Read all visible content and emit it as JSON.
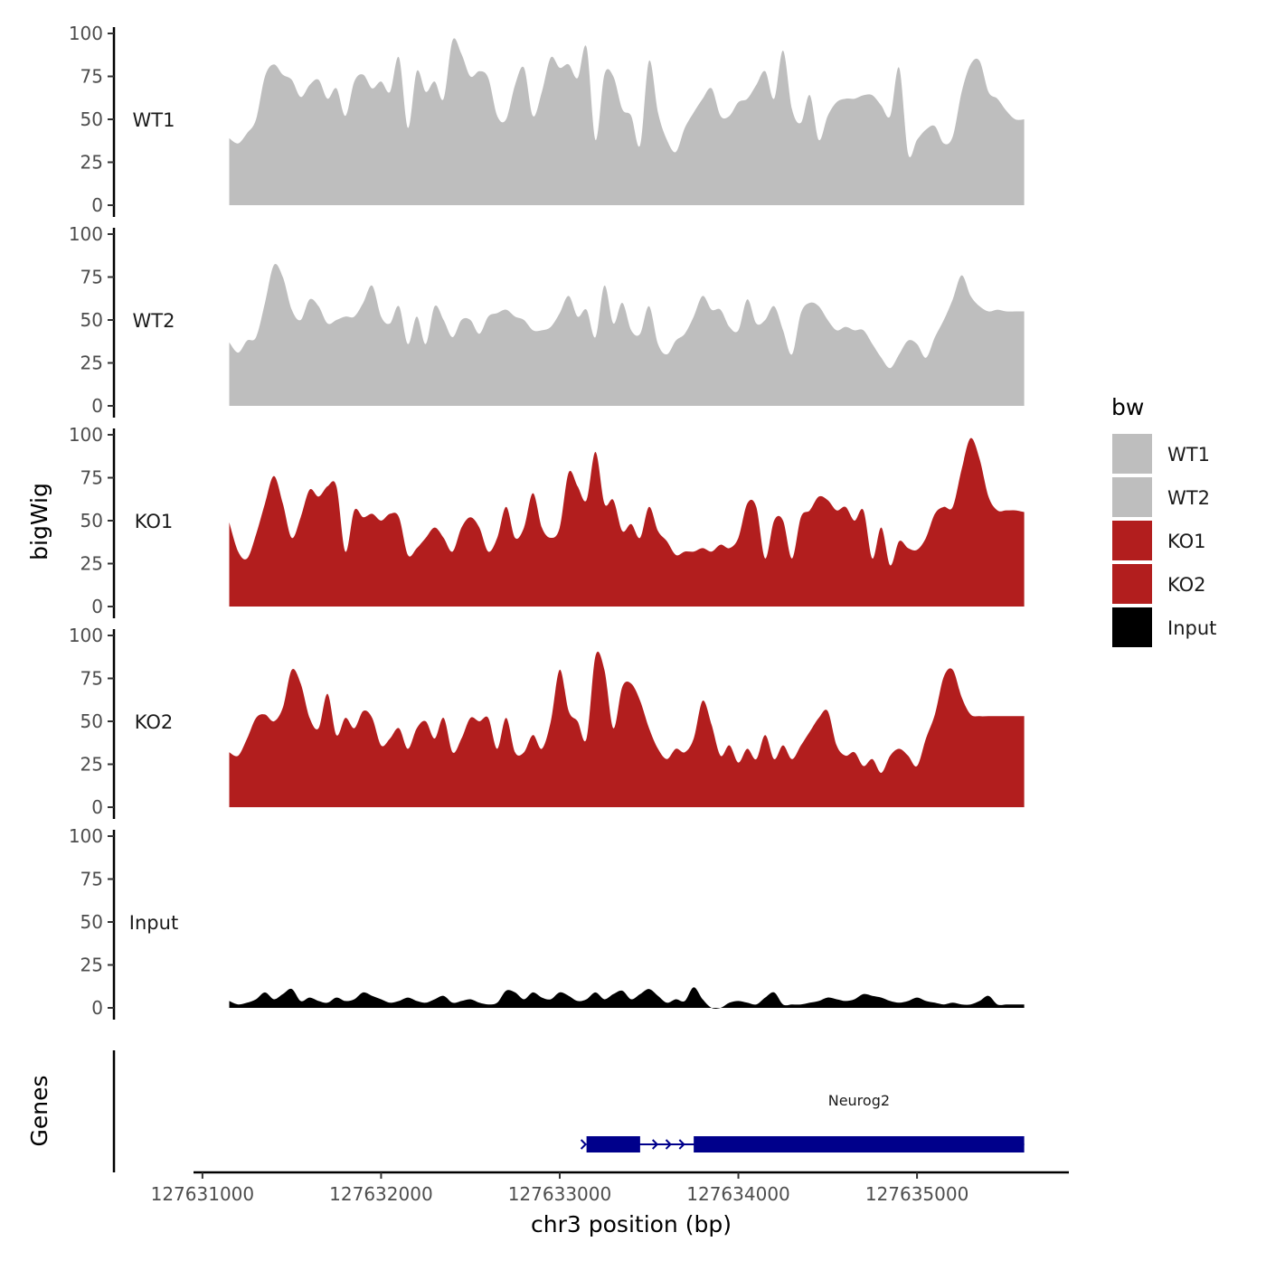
{
  "chart_data": {
    "type": "area",
    "title": "",
    "xlabel": "chr3 position (bp)",
    "ylabel": "bigWig",
    "genes_panel_label": "Genes",
    "xlim": [
      127630950,
      127635850
    ],
    "ylim": [
      0,
      100
    ],
    "x_ticks": [
      127631000,
      127632000,
      127633000,
      127634000,
      127635000
    ],
    "x_tick_labels": [
      "127631000",
      "127632000",
      "127633000",
      "127634000",
      "127635000"
    ],
    "y_ticks": [
      0,
      25,
      50,
      75,
      100
    ],
    "y_tick_labels": [
      "0",
      "25",
      "50",
      "75",
      "100"
    ],
    "legend": {
      "title": "bw",
      "position": "right",
      "entries": [
        {
          "label": "WT1",
          "color": "#bebebe"
        },
        {
          "label": "WT2",
          "color": "#bebebe"
        },
        {
          "label": "KO1",
          "color": "#b21e1e"
        },
        {
          "label": "KO2",
          "color": "#b21e1e"
        },
        {
          "label": "Input",
          "color": "#000000"
        }
      ]
    },
    "series": [
      {
        "name": "WT1",
        "color": "#bebebe",
        "x": [
          127631150,
          127631200,
          127631250,
          127631300,
          127631350,
          127631400,
          127631450,
          127631500,
          127631550,
          127631600,
          127631650,
          127631700,
          127631750,
          127631800,
          127631850,
          127631900,
          127631950,
          127632000,
          127632050,
          127632100,
          127632150,
          127632200,
          127632250,
          127632300,
          127632350,
          127632400,
          127632450,
          127632500,
          127632550,
          127632600,
          127632650,
          127632700,
          127632750,
          127632800,
          127632850,
          127632900,
          127632950,
          127633000,
          127633050,
          127633100,
          127633150,
          127633200,
          127633250,
          127633300,
          127633350,
          127633400,
          127633450,
          127633500,
          127633550,
          127633600,
          127633650,
          127633700,
          127633750,
          127633800,
          127633850,
          127633900,
          127633950,
          127634000,
          127634050,
          127634100,
          127634150,
          127634200,
          127634250,
          127634300,
          127634350,
          127634400,
          127634450,
          127634500,
          127634550,
          127634600,
          127634650,
          127634700,
          127634750,
          127634800,
          127634850,
          127634900,
          127634950,
          127635000,
          127635050,
          127635100,
          127635150,
          127635200,
          127635250,
          127635300,
          127635350,
          127635400,
          127635450,
          127635500,
          127635550,
          127635600
        ],
        "y": [
          39,
          36,
          42,
          50,
          75,
          82,
          76,
          73,
          63,
          70,
          73,
          62,
          68,
          52,
          72,
          76,
          68,
          72,
          66,
          86,
          45,
          78,
          66,
          72,
          62,
          96,
          88,
          75,
          78,
          74,
          52,
          50,
          70,
          80,
          52,
          66,
          86,
          80,
          82,
          74,
          92,
          38,
          76,
          75,
          56,
          52,
          35,
          84,
          54,
          38,
          31,
          45,
          54,
          62,
          68,
          52,
          52,
          60,
          62,
          70,
          78,
          62,
          90,
          56,
          48,
          64,
          38,
          52,
          60,
          62,
          62,
          64,
          64,
          58,
          52,
          80,
          30,
          38,
          44,
          46,
          36,
          40,
          66,
          82,
          84,
          66,
          62,
          55,
          50,
          50
        ]
      },
      {
        "name": "WT2",
        "color": "#bebebe",
        "x": [
          127631150,
          127631200,
          127631250,
          127631300,
          127631350,
          127631400,
          127631450,
          127631500,
          127631550,
          127631600,
          127631650,
          127631700,
          127631750,
          127631800,
          127631850,
          127631900,
          127631950,
          127632000,
          127632050,
          127632100,
          127632150,
          127632200,
          127632250,
          127632300,
          127632350,
          127632400,
          127632450,
          127632500,
          127632550,
          127632600,
          127632650,
          127632700,
          127632750,
          127632800,
          127632850,
          127632900,
          127632950,
          127633000,
          127633050,
          127633100,
          127633150,
          127633200,
          127633250,
          127633300,
          127633350,
          127633400,
          127633450,
          127633500,
          127633550,
          127633600,
          127633650,
          127633700,
          127633750,
          127633800,
          127633850,
          127633900,
          127633950,
          127634000,
          127634050,
          127634100,
          127634150,
          127634200,
          127634250,
          127634300,
          127634350,
          127634400,
          127634450,
          127634500,
          127634550,
          127634600,
          127634650,
          127634700,
          127634750,
          127634800,
          127634850,
          127634900,
          127634950,
          127635000,
          127635050,
          127635100,
          127635150,
          127635200,
          127635250,
          127635300,
          127635350,
          127635400,
          127635450,
          127635500,
          127635550,
          127635600
        ],
        "y": [
          37,
          31,
          38,
          40,
          60,
          82,
          75,
          56,
          50,
          62,
          58,
          48,
          50,
          52,
          52,
          60,
          70,
          52,
          48,
          58,
          36,
          52,
          36,
          58,
          50,
          40,
          50,
          50,
          42,
          52,
          54,
          56,
          52,
          50,
          44,
          44,
          46,
          54,
          64,
          52,
          56,
          40,
          70,
          48,
          60,
          44,
          42,
          58,
          36,
          30,
          38,
          42,
          52,
          64,
          56,
          56,
          46,
          44,
          62,
          48,
          50,
          58,
          44,
          30,
          54,
          60,
          58,
          50,
          44,
          46,
          44,
          44,
          36,
          28,
          22,
          30,
          38,
          36,
          28,
          40,
          50,
          62,
          76,
          64,
          58,
          55,
          56,
          55,
          55,
          55
        ]
      },
      {
        "name": "KO1",
        "color": "#b21e1e",
        "x": [
          127631150,
          127631200,
          127631250,
          127631300,
          127631350,
          127631400,
          127631450,
          127631500,
          127631550,
          127631600,
          127631650,
          127631700,
          127631750,
          127631800,
          127631850,
          127631900,
          127631950,
          127632000,
          127632050,
          127632100,
          127632150,
          127632200,
          127632250,
          127632300,
          127632350,
          127632400,
          127632450,
          127632500,
          127632550,
          127632600,
          127632650,
          127632700,
          127632750,
          127632800,
          127632850,
          127632900,
          127632950,
          127633000,
          127633050,
          127633100,
          127633150,
          127633200,
          127633250,
          127633300,
          127633350,
          127633400,
          127633450,
          127633500,
          127633550,
          127633600,
          127633650,
          127633700,
          127633750,
          127633800,
          127633850,
          127633900,
          127633950,
          127634000,
          127634050,
          127634100,
          127634150,
          127634200,
          127634250,
          127634300,
          127634350,
          127634400,
          127634450,
          127634500,
          127634550,
          127634600,
          127634650,
          127634700,
          127634750,
          127634800,
          127634850,
          127634900,
          127634950,
          127635000,
          127635050,
          127635100,
          127635150,
          127635200,
          127635250,
          127635300,
          127635350,
          127635400,
          127635450,
          127635500,
          127635550,
          127635600
        ],
        "y": [
          49,
          32,
          28,
          42,
          60,
          76,
          60,
          40,
          52,
          68,
          64,
          70,
          70,
          32,
          56,
          52,
          54,
          50,
          54,
          52,
          30,
          34,
          40,
          46,
          40,
          32,
          46,
          52,
          46,
          32,
          40,
          58,
          40,
          46,
          66,
          46,
          40,
          46,
          78,
          70,
          62,
          90,
          60,
          62,
          44,
          48,
          40,
          58,
          44,
          38,
          30,
          32,
          32,
          34,
          32,
          36,
          34,
          40,
          60,
          58,
          28,
          50,
          50,
          28,
          52,
          56,
          64,
          62,
          56,
          58,
          50,
          56,
          28,
          46,
          24,
          38,
          34,
          33,
          40,
          54,
          58,
          58,
          80,
          98,
          86,
          64,
          56,
          56,
          56,
          55
        ]
      },
      {
        "name": "KO2",
        "color": "#b21e1e",
        "x": [
          127631150,
          127631200,
          127631250,
          127631300,
          127631350,
          127631400,
          127631450,
          127631500,
          127631550,
          127631600,
          127631650,
          127631700,
          127631750,
          127631800,
          127631850,
          127631900,
          127631950,
          127632000,
          127632050,
          127632100,
          127632150,
          127632200,
          127632250,
          127632300,
          127632350,
          127632400,
          127632450,
          127632500,
          127632550,
          127632600,
          127632650,
          127632700,
          127632750,
          127632800,
          127632850,
          127632900,
          127632950,
          127633000,
          127633050,
          127633100,
          127633150,
          127633200,
          127633250,
          127633300,
          127633350,
          127633400,
          127633450,
          127633500,
          127633550,
          127633600,
          127633650,
          127633700,
          127633750,
          127633800,
          127633850,
          127633900,
          127633950,
          127634000,
          127634050,
          127634100,
          127634150,
          127634200,
          127634250,
          127634300,
          127634350,
          127634400,
          127634450,
          127634500,
          127634550,
          127634600,
          127634650,
          127634700,
          127634750,
          127634800,
          127634850,
          127634900,
          127634950,
          127635000,
          127635050,
          127635100,
          127635150,
          127635200,
          127635250,
          127635300,
          127635350,
          127635400,
          127635450,
          127635500,
          127635550,
          127635600
        ],
        "y": [
          32,
          30,
          40,
          52,
          54,
          50,
          58,
          80,
          72,
          52,
          46,
          66,
          42,
          52,
          46,
          56,
          52,
          36,
          40,
          46,
          34,
          46,
          50,
          40,
          52,
          32,
          40,
          52,
          50,
          52,
          34,
          52,
          32,
          32,
          42,
          34,
          50,
          80,
          56,
          50,
          40,
          88,
          80,
          46,
          70,
          72,
          62,
          46,
          34,
          28,
          34,
          32,
          40,
          62,
          48,
          30,
          36,
          26,
          34,
          28,
          42,
          28,
          36,
          28,
          36,
          44,
          52,
          56,
          36,
          30,
          32,
          24,
          28,
          20,
          30,
          34,
          30,
          24,
          40,
          54,
          76,
          80,
          64,
          54,
          53,
          53,
          53,
          53,
          53,
          53
        ]
      },
      {
        "name": "Input",
        "color": "#000000",
        "x": [
          127631150,
          127631200,
          127631250,
          127631300,
          127631350,
          127631400,
          127631450,
          127631500,
          127631550,
          127631600,
          127631650,
          127631700,
          127631750,
          127631800,
          127631850,
          127631900,
          127631950,
          127632000,
          127632050,
          127632100,
          127632150,
          127632200,
          127632250,
          127632300,
          127632350,
          127632400,
          127632450,
          127632500,
          127632550,
          127632600,
          127632650,
          127632700,
          127632750,
          127632800,
          127632850,
          127632900,
          127632950,
          127633000,
          127633050,
          127633100,
          127633150,
          127633200,
          127633250,
          127633300,
          127633350,
          127633400,
          127633450,
          127633500,
          127633550,
          127633600,
          127633650,
          127633700,
          127633750,
          127633800,
          127633850,
          127633900,
          127633950,
          127634000,
          127634050,
          127634100,
          127634150,
          127634200,
          127634250,
          127634300,
          127634350,
          127634400,
          127634450,
          127634500,
          127634550,
          127634600,
          127634650,
          127634700,
          127634750,
          127634800,
          127634850,
          127634900,
          127634950,
          127635000,
          127635050,
          127635100,
          127635150,
          127635200,
          127635250,
          127635300,
          127635350,
          127635400,
          127635450,
          127635500,
          127635550,
          127635600
        ],
        "y": [
          4,
          2,
          3,
          5,
          9,
          5,
          8,
          11,
          4,
          6,
          4,
          3,
          6,
          4,
          5,
          9,
          7,
          5,
          3,
          4,
          6,
          4,
          3,
          5,
          7,
          3,
          4,
          5,
          3,
          2,
          3,
          10,
          9,
          5,
          9,
          6,
          5,
          9,
          7,
          4,
          5,
          9,
          5,
          8,
          10,
          5,
          8,
          11,
          7,
          3,
          5,
          4,
          12,
          5,
          0,
          0,
          3,
          4,
          3,
          2,
          6,
          9,
          2,
          2,
          2,
          3,
          4,
          6,
          5,
          4,
          5,
          8,
          7,
          6,
          4,
          3,
          4,
          6,
          4,
          3,
          2,
          3,
          2,
          2,
          4,
          7,
          2,
          2,
          2,
          2
        ]
      }
    ],
    "genes": [
      {
        "name": "Neurog2",
        "color": "#00008b",
        "start": 127633150,
        "end": 127635600,
        "exons": [
          [
            127633150,
            127633450
          ],
          [
            127633750,
            127635600
          ]
        ]
      }
    ]
  }
}
